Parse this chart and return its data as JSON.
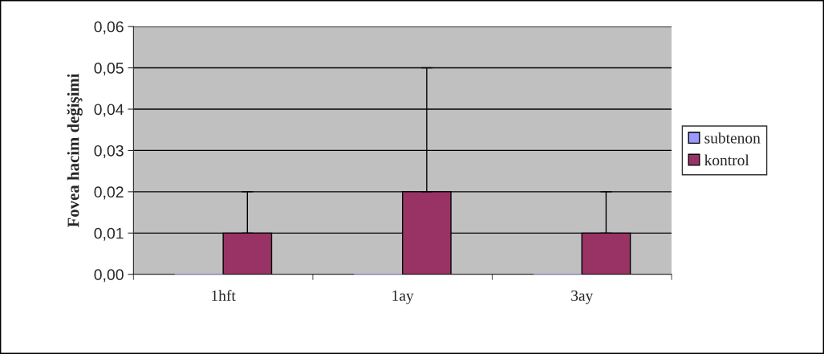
{
  "chart_data": {
    "type": "bar",
    "ylabel": "Fovea hacim değişimi",
    "categories": [
      "1hft",
      "1ay",
      "3ay"
    ],
    "series": [
      {
        "name": "subtenon",
        "color": "#9999ff",
        "values": [
          0,
          0,
          0
        ]
      },
      {
        "name": "kontrol",
        "color": "#993366",
        "values": [
          0.01,
          0.02,
          0.01
        ],
        "errors": [
          [
            0.01,
            0.02
          ],
          [
            0.02,
            0.05
          ],
          [
            0.01,
            0.02
          ]
        ]
      }
    ],
    "ylim": [
      0,
      0.06
    ],
    "yticks": [
      {
        "value": 0,
        "label": "0,00"
      },
      {
        "value": 0.01,
        "label": "0,01"
      },
      {
        "value": 0.02,
        "label": "0,02"
      },
      {
        "value": 0.03,
        "label": "0,03"
      },
      {
        "value": 0.04,
        "label": "0,04"
      },
      {
        "value": 0.05,
        "label": "0,05"
      },
      {
        "value": 0.06,
        "label": "0,06"
      }
    ],
    "grid": "y",
    "legend": "right"
  }
}
